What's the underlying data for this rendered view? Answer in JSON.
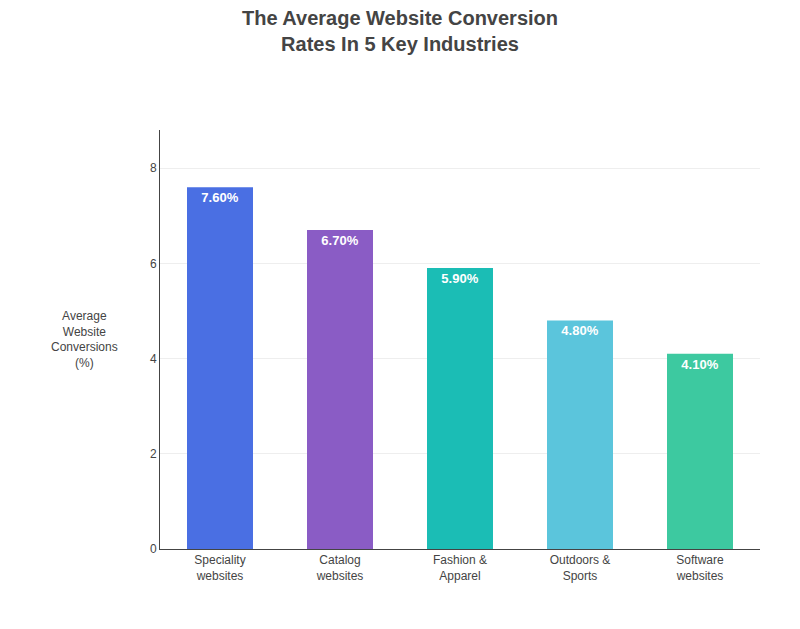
{
  "chart_data": {
    "type": "bar",
    "title": "The Average Website Conversion\nRates In 5 Key Industries",
    "categories": [
      "Speciality\nwebsites",
      "Catalog\nwebsites",
      "Fashion &\nApparel",
      "Outdoors &\nSports",
      "Software\nwebsites"
    ],
    "values": [
      7.6,
      6.7,
      5.9,
      4.8,
      4.1
    ],
    "value_labels": [
      "7.60%",
      "6.70%",
      "5.90%",
      "4.80%",
      "4.10%"
    ],
    "data_labels": true,
    "colors": [
      "#4A6FE3",
      "#8A5CC5",
      "#1BBDB5",
      "#5BC5DC",
      "#3DC9A0"
    ],
    "ylabel": "Average\nWebsite\nConversions\n(%)",
    "ylim": [
      0,
      8.8
    ],
    "yticks": [
      0,
      2,
      4,
      6,
      8
    ],
    "grid": true
  }
}
